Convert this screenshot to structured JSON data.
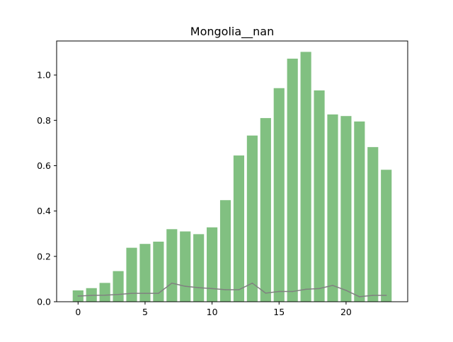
{
  "chart_data": {
    "type": "bar",
    "title": "Mongolia__nan",
    "xlabel": "",
    "ylabel": "",
    "x": [
      0,
      1,
      2,
      3,
      4,
      5,
      6,
      7,
      8,
      9,
      10,
      11,
      12,
      13,
      14,
      15,
      16,
      17,
      18,
      19,
      20,
      21,
      22,
      23
    ],
    "xlim": [
      -1.6,
      24.6
    ],
    "ylim": [
      0,
      1.15
    ],
    "xticks": [
      0,
      5,
      10,
      15,
      20
    ],
    "xtick_labels": [
      "0",
      "5",
      "10",
      "15",
      "20"
    ],
    "yticks": [
      0.0,
      0.2,
      0.4,
      0.6,
      0.8,
      1.0
    ],
    "ytick_labels": [
      "0.0",
      "0.2",
      "0.4",
      "0.6",
      "0.8",
      "1.0"
    ],
    "grid": false,
    "series": [
      {
        "type": "bar",
        "color": "#81c081",
        "values": [
          0.05,
          0.06,
          0.083,
          0.135,
          0.238,
          0.255,
          0.265,
          0.32,
          0.31,
          0.298,
          0.328,
          0.448,
          0.645,
          0.733,
          0.81,
          0.942,
          1.072,
          1.102,
          0.932,
          0.826,
          0.819,
          0.795,
          0.682,
          0.582
        ]
      },
      {
        "type": "line",
        "color": "#808080",
        "values": [
          0.025,
          0.028,
          0.029,
          0.032,
          0.037,
          0.037,
          0.037,
          0.082,
          0.068,
          0.062,
          0.058,
          0.053,
          0.053,
          0.082,
          0.038,
          0.045,
          0.045,
          0.055,
          0.058,
          0.072,
          0.05,
          0.022,
          0.028,
          0.028
        ]
      }
    ]
  }
}
